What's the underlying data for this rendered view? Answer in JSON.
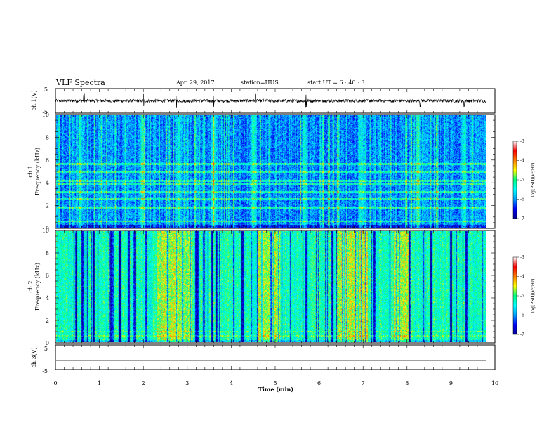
{
  "header": {
    "title": "VLF Spectra",
    "date": "Apr. 29, 2017",
    "station": "station=HUS",
    "start": "start  UT =  6 : 40 : 3"
  },
  "colorbar": {
    "label": "log(PSD)(V²/Hz)",
    "ticks": [
      "-3",
      "-4",
      "-5",
      "-6",
      "-7"
    ],
    "range": [
      -7,
      -3
    ],
    "colors": [
      "#000090",
      "#0000ff",
      "#00a0ff",
      "#00ffff",
      "#00ff80",
      "#ffff00",
      "#ff8000",
      "#ff0000",
      "#ffffff"
    ]
  },
  "chart_data": [
    {
      "type": "line",
      "panel": "ch.1 waveform",
      "ylabel": "ch.1(V)",
      "ylim": [
        -5,
        5
      ],
      "yticks": [
        "5",
        "-5"
      ],
      "xlim": [
        0,
        10
      ],
      "baseline": 0,
      "amplitude_typical": 0.6,
      "spike_times_min": [
        0.65,
        2.0,
        2.75,
        3.6,
        4.55,
        5.7,
        8.3,
        9.3
      ],
      "color": "#000000"
    },
    {
      "type": "heatmap",
      "panel": "ch.1 spectrogram",
      "ylabel_top": "ch.1",
      "ylabel": "Frequency (kHz)",
      "ylim": [
        0,
        10
      ],
      "yticks": [
        "0",
        "2",
        "4",
        "6",
        "8",
        "10"
      ],
      "xlim": [
        0,
        9.8
      ],
      "zlim": [
        -7,
        -3
      ],
      "background_level": -5.9,
      "horizontal_bands_khz": [
        0.6,
        1.8,
        2.6,
        3.2,
        3.9,
        4.2,
        5.0,
        5.7
      ],
      "bright_columns_min": [
        0.55,
        1.95,
        2.8,
        3.6,
        4.5,
        5.65,
        6.95,
        8.25,
        9.3
      ]
    },
    {
      "type": "heatmap",
      "panel": "ch.2 spectrogram",
      "ylabel_top": "ch.2",
      "ylabel": "Frequency (kHz)",
      "ylim": [
        0,
        10
      ],
      "yticks": [
        "0",
        "2",
        "4",
        "6",
        "8",
        "10"
      ],
      "xlim": [
        0,
        9.8
      ],
      "zlim": [
        -7,
        -3
      ],
      "background_level": -5.0,
      "dark_columns_min": [
        0.45,
        0.6,
        0.85,
        1.25,
        1.45,
        1.65,
        1.8,
        2.05,
        3.2,
        3.55,
        3.65,
        4.25,
        4.9,
        5.7,
        6.3,
        7.25,
        8.05,
        8.55,
        9.0,
        9.35
      ],
      "bright_regions_min": [
        [
          2.3,
          3.1
        ],
        [
          4.6,
          5.1
        ],
        [
          6.4,
          7.1
        ],
        [
          7.7,
          8.1
        ]
      ]
    },
    {
      "type": "line",
      "panel": "ch.3 waveform",
      "ylabel": "ch.3(V)",
      "ylim": [
        -5,
        5
      ],
      "yticks": [
        "5",
        "-5"
      ],
      "xlim": [
        0,
        10
      ],
      "baseline": -1.3,
      "xlabel": "Time (min)",
      "xticks": [
        "0",
        "1",
        "2",
        "3",
        "4",
        "5",
        "6",
        "7",
        "8",
        "9",
        "10"
      ],
      "color": "#000000"
    }
  ]
}
